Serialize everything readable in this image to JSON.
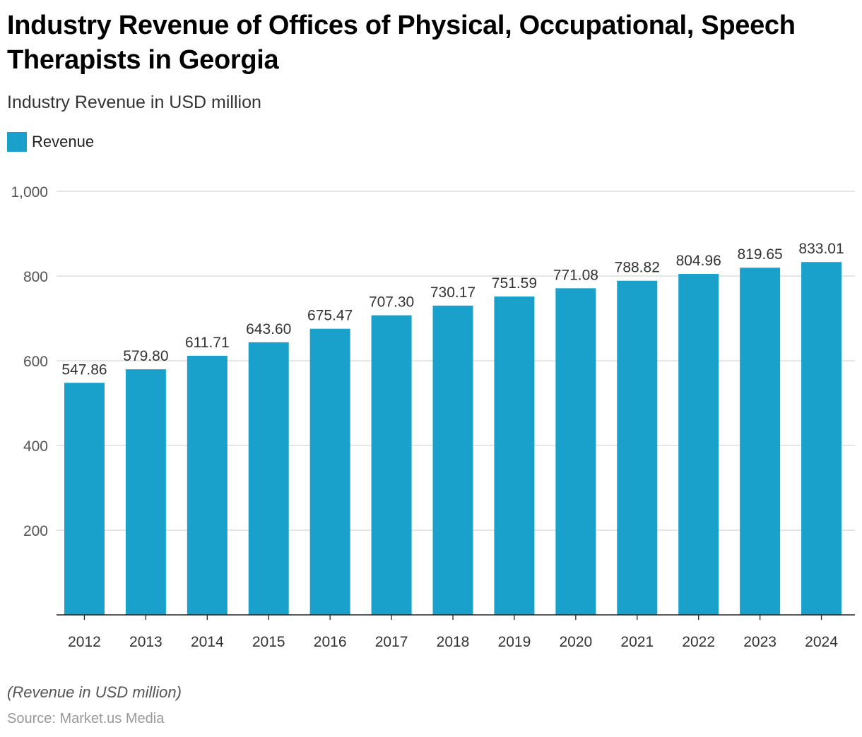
{
  "title": "Industry Revenue of Offices of Physical, Occupational, Speech Therapists in Georgia",
  "subtitle": "Industry Revenue in USD million",
  "note": "(Revenue in USD million)",
  "source": "Source: Market.us Media",
  "colors": {
    "bar": "#19a1cc"
  },
  "chart_data": {
    "type": "bar",
    "categories": [
      "2012",
      "2013",
      "2014",
      "2015",
      "2016",
      "2017",
      "2018",
      "2019",
      "2020",
      "2021",
      "2022",
      "2023",
      "2024"
    ],
    "series": [
      {
        "name": "Revenue",
        "values": [
          547.86,
          579.8,
          611.71,
          643.6,
          675.47,
          707.3,
          730.17,
          751.59,
          771.08,
          788.82,
          804.96,
          819.65,
          833.01
        ]
      }
    ],
    "ylim": [
      0,
      1000
    ],
    "yticks": [
      200,
      400,
      600,
      800,
      1000
    ],
    "ytick_labels": [
      "200",
      "400",
      "600",
      "800",
      "1,000"
    ],
    "grid": true,
    "legend": "top-left",
    "xlabel": "",
    "ylabel": ""
  }
}
